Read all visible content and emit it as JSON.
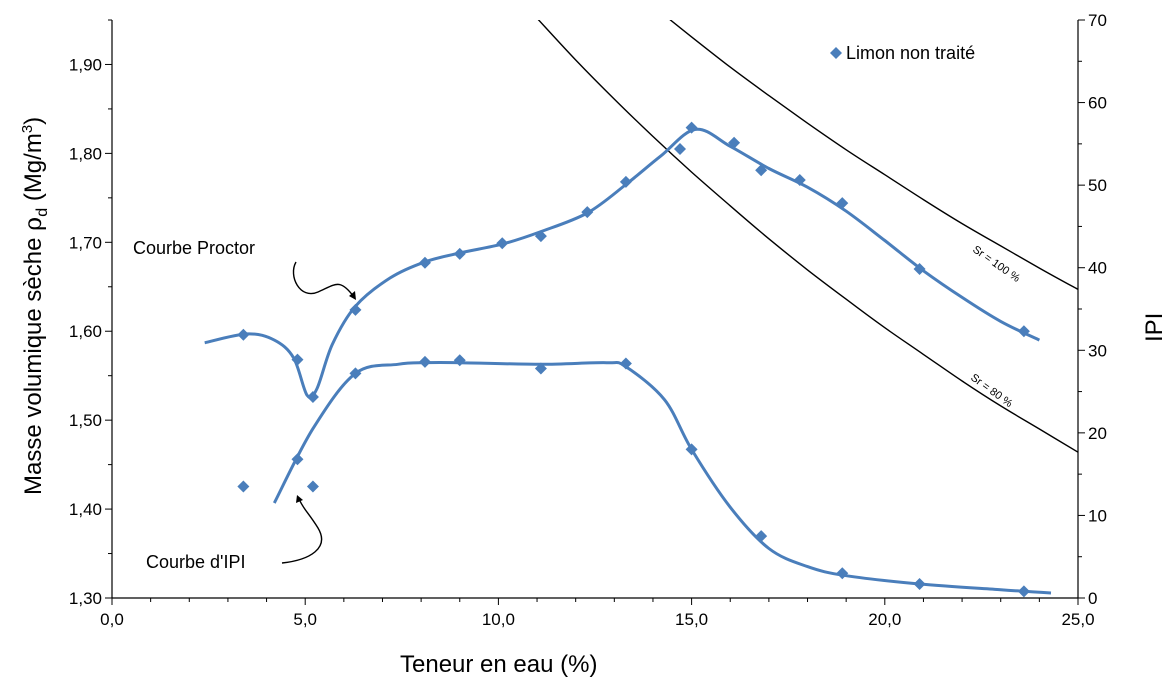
{
  "chart_data": {
    "type": "scatter",
    "xlabel": "Teneur en eau (%)",
    "ylabel": "Masse volumique sèche ρd (Mg/m³)",
    "ylabel_main": "Masse volumique sèche ",
    "ylabel_rho": "ρ",
    "ylabel_sub": "d",
    "ylabel_unit": " (Mg/m",
    "ylabel_sup": "3",
    "ylabel_close": ")",
    "y2label": "IPI",
    "xlim": [
      0,
      25
    ],
    "ylim": [
      1.3,
      1.95
    ],
    "y2lim": [
      0,
      70
    ],
    "x_ticks": [
      "0,0",
      "5,0",
      "10,0",
      "15,0",
      "20,0",
      "25,0"
    ],
    "y_ticks": [
      "1,30",
      "1,40",
      "1,50",
      "1,60",
      "1,70",
      "1,80",
      "1,90"
    ],
    "y2_ticks": [
      "0",
      "10",
      "20",
      "30",
      "40",
      "50",
      "60",
      "70"
    ],
    "legend": {
      "label": "Limon non traité",
      "position": "top-right"
    },
    "series": [
      {
        "name": "Limon non traité",
        "axis": "left",
        "x": [
          3.4,
          4.8,
          5.2,
          6.3,
          8.1,
          9.0,
          10.1,
          11.1,
          12.3,
          13.3,
          14.7,
          15.0,
          16.1,
          16.8,
          17.8,
          18.9,
          20.9,
          23.6
        ],
        "y": [
          1.596,
          1.568,
          1.526,
          1.624,
          1.677,
          1.687,
          1.699,
          1.707,
          1.734,
          1.768,
          1.805,
          1.829,
          1.812,
          1.781,
          1.77,
          1.744,
          1.67,
          1.6
        ]
      },
      {
        "name": "Limon non traité",
        "axis": "right",
        "x": [
          3.4,
          4.8,
          5.2,
          6.3,
          8.1,
          9.0,
          11.1,
          13.3,
          15.0,
          16.8,
          18.9,
          20.9,
          23.6
        ],
        "y": [
          13.5,
          16.8,
          13.5,
          27.2,
          28.6,
          28.8,
          27.8,
          28.4,
          18.0,
          7.5,
          3.0,
          1.7,
          0.8
        ]
      }
    ],
    "curves": [
      {
        "label": "Courbe Proctor",
        "axis": "left",
        "x": [
          2.4,
          3.5,
          4.2,
          4.7,
          5.05,
          5.3,
          5.7,
          6.3,
          7.2,
          8.1,
          9.0,
          10.1,
          11.1,
          12.3,
          13.3,
          14.2,
          15.1,
          16.0,
          17.0,
          18.0,
          19.0,
          20.0,
          21.0,
          22.0,
          23.0,
          24.0
        ],
        "y": [
          1.587,
          1.597,
          1.59,
          1.57,
          1.528,
          1.535,
          1.585,
          1.628,
          1.66,
          1.678,
          1.688,
          1.698,
          1.712,
          1.733,
          1.765,
          1.797,
          1.827,
          1.808,
          1.783,
          1.762,
          1.735,
          1.702,
          1.668,
          1.638,
          1.611,
          1.59
        ]
      },
      {
        "label": "Courbe d'IPI",
        "axis": "right",
        "x": [
          4.2,
          5.2,
          6.3,
          7.4,
          8.1,
          9.0,
          11.1,
          12.8,
          13.3,
          14.3,
          15.0,
          16.0,
          17.0,
          18.0,
          19.0,
          20.9,
          23.0,
          24.3
        ],
        "y": [
          11.5,
          20.5,
          27.2,
          28.3,
          28.5,
          28.5,
          28.3,
          28.5,
          28.0,
          24.0,
          18.0,
          11.0,
          6.0,
          3.8,
          2.7,
          1.7,
          1.0,
          0.6
        ]
      }
    ],
    "saturation_lines": [
      {
        "label": "Sr = 100 %",
        "axis": "left",
        "x": [
          11.2,
          12.0,
          13.0,
          14.0,
          15.0,
          16.0,
          17.0,
          18.0,
          19.0,
          20.0,
          21.0,
          22.0,
          23.0,
          24.0,
          25.0
        ],
        "y": [
          2.071,
          2.04,
          2.002,
          1.966,
          1.931,
          1.897,
          1.865,
          1.834,
          1.804,
          1.776,
          1.748,
          1.721,
          1.696,
          1.671,
          1.647
        ]
      },
      {
        "label": "Sr = 80 %",
        "axis": "left",
        "x": [
          11.0,
          12.0,
          13.0,
          14.0,
          15.0,
          16.0,
          17.0,
          18.0,
          19.0,
          20.0,
          21.0,
          22.0,
          23.0,
          24.0,
          25.0
        ],
        "y": [
          1.952,
          1.905,
          1.861,
          1.819,
          1.779,
          1.741,
          1.704,
          1.669,
          1.636,
          1.604,
          1.574,
          1.544,
          1.516,
          1.49,
          1.464
        ]
      }
    ],
    "colors": {
      "series": "#4a7ebb",
      "lines": "#000000"
    }
  }
}
